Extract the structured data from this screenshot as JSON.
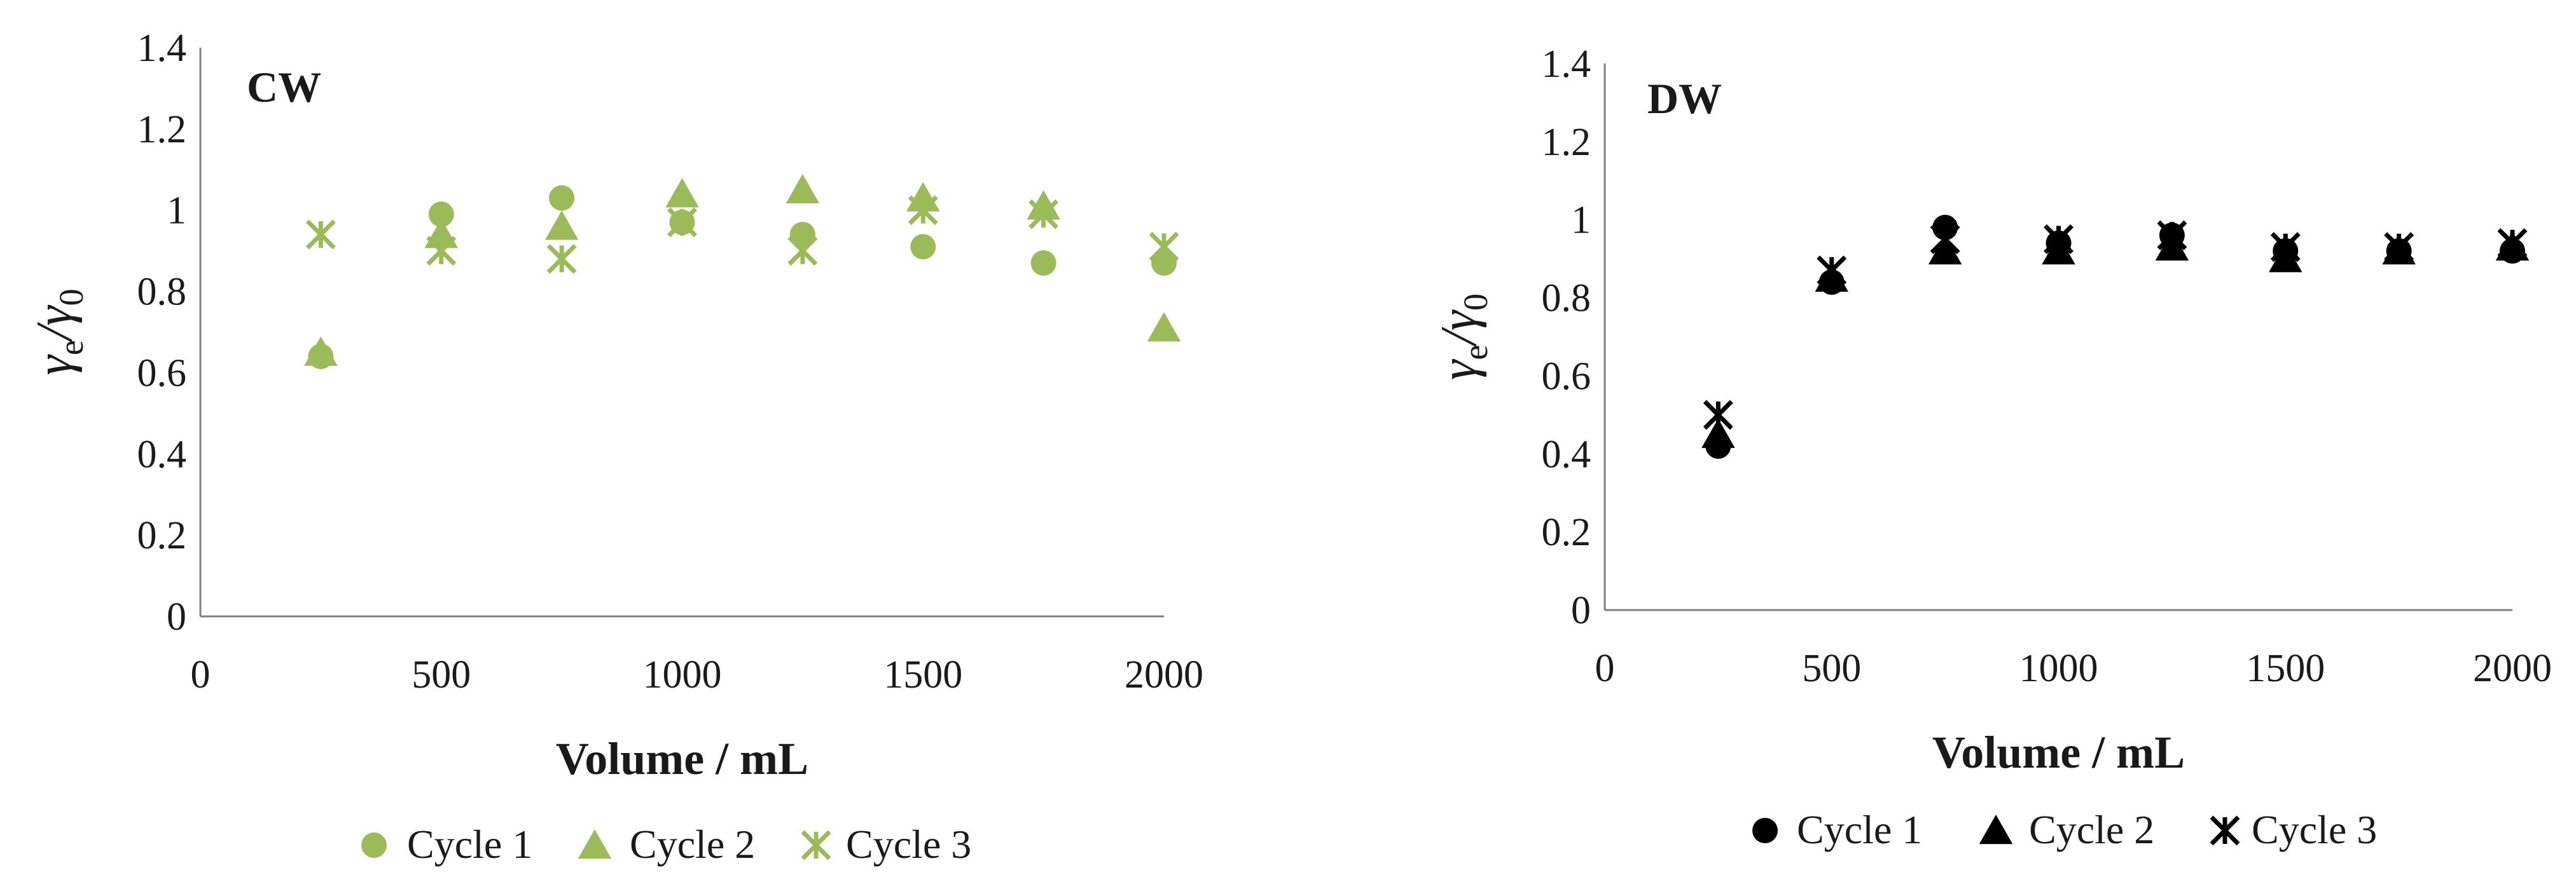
{
  "chart_data": [
    {
      "type": "scatter",
      "title": "CW",
      "xlabel": "Volume / mL",
      "ylabel": {
        "base": "γ",
        "sub_num": "e",
        "slash": "/",
        "base2": "γ",
        "sub_den": "0"
      },
      "xlim": [
        0,
        2000
      ],
      "ylim": [
        0,
        1.4
      ],
      "xticks": [
        "0",
        "500",
        "1000",
        "1500",
        "2000"
      ],
      "yticks": [
        "0",
        "0.2",
        "0.4",
        "0.6",
        "0.8",
        "1",
        "1.2",
        "1.4"
      ],
      "color": "#9bbb59",
      "series": [
        {
          "name": "Cycle 1",
          "marker": "circle",
          "x": [
            250,
            500,
            750,
            1000,
            1250,
            1500,
            1750,
            2000
          ],
          "y": [
            0.64,
            0.99,
            1.03,
            0.97,
            0.94,
            0.91,
            0.87,
            0.87
          ]
        },
        {
          "name": "Cycle 2",
          "marker": "triangle",
          "x": [
            250,
            500,
            750,
            1000,
            1250,
            1500,
            1750,
            2000
          ],
          "y": [
            0.65,
            0.94,
            0.96,
            1.04,
            1.05,
            1.03,
            1.01,
            0.71
          ]
        },
        {
          "name": "Cycle 3",
          "marker": "star",
          "x": [
            250,
            500,
            750,
            1000,
            1250,
            1500,
            1750,
            2000
          ],
          "y": [
            0.94,
            0.9,
            0.88,
            0.97,
            0.9,
            1.0,
            0.99,
            0.91
          ]
        }
      ]
    },
    {
      "type": "scatter",
      "title": "DW",
      "xlabel": "Volume / mL",
      "ylabel": {
        "base": "γ",
        "sub_num": "e",
        "slash": "/",
        "base2": "γ",
        "sub_den": "0"
      },
      "xlim": [
        0,
        2000
      ],
      "ylim": [
        0,
        1.4
      ],
      "xticks": [
        "0",
        "500",
        "1000",
        "1500",
        "2000"
      ],
      "yticks": [
        "0",
        "0.2",
        "0.4",
        "0.6",
        "0.8",
        "1",
        "1.2",
        "1.4"
      ],
      "color": "#000000",
      "series": [
        {
          "name": "Cycle 1",
          "marker": "circle",
          "x": [
            250,
            500,
            750,
            1000,
            1250,
            1500,
            1750,
            2000
          ],
          "y": [
            0.42,
            0.84,
            0.98,
            0.94,
            0.96,
            0.92,
            0.92,
            0.92
          ]
        },
        {
          "name": "Cycle 2",
          "marker": "triangle",
          "x": [
            250,
            500,
            750,
            1000,
            1250,
            1500,
            1750,
            2000
          ],
          "y": [
            0.45,
            0.85,
            0.92,
            0.92,
            0.93,
            0.9,
            0.92,
            0.93
          ]
        },
        {
          "name": "Cycle 3",
          "marker": "star",
          "x": [
            250,
            500,
            750,
            1000,
            1250,
            1500,
            1750,
            2000
          ],
          "y": [
            0.5,
            0.87,
            0.95,
            0.95,
            0.96,
            0.93,
            0.93,
            0.94
          ]
        }
      ]
    }
  ]
}
